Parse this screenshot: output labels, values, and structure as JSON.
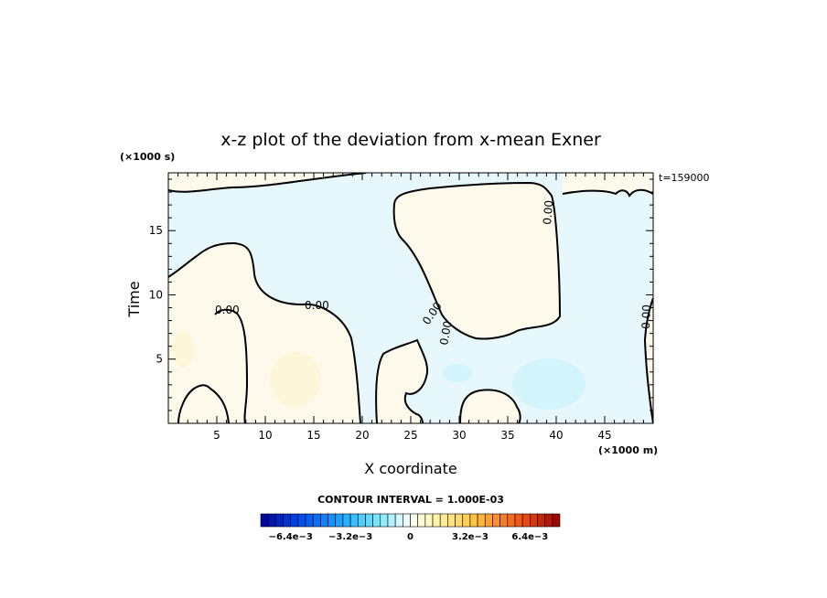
{
  "chart_data": {
    "type": "heatmap",
    "title": "x-z plot of the deviation from x-mean Exner",
    "xlabel": "X coordinate",
    "ylabel": "Time",
    "x_unit": "(×1000 m)",
    "y_unit": "(×1000 s)",
    "time_label": "t=159000",
    "xlim": [
      0,
      50
    ],
    "ylim": [
      0,
      19.5
    ],
    "x_ticks": [
      5,
      10,
      15,
      20,
      25,
      30,
      35,
      40,
      45
    ],
    "y_ticks": [
      5,
      10,
      15
    ],
    "contour_interval_label": "CONTOUR INTERVAL = 1.000E-03",
    "contour_level_label": "0.00",
    "colorbar": {
      "min": -0.008,
      "max": 0.008,
      "n_bins": 40,
      "tick_values": [
        -0.0064,
        -0.0032,
        0,
        0.0032,
        0.0064
      ],
      "tick_labels": [
        "−6.4e−3",
        "−3.2e−3",
        "0",
        "3.2e−3",
        "6.4e−3"
      ]
    },
    "fill_colors": {
      "negative_weak": "#e6f8fb",
      "negative_mid": "#d2f5fb",
      "positive_weak": "#fdfaeb",
      "positive_mid": "#fdf6d8"
    }
  }
}
